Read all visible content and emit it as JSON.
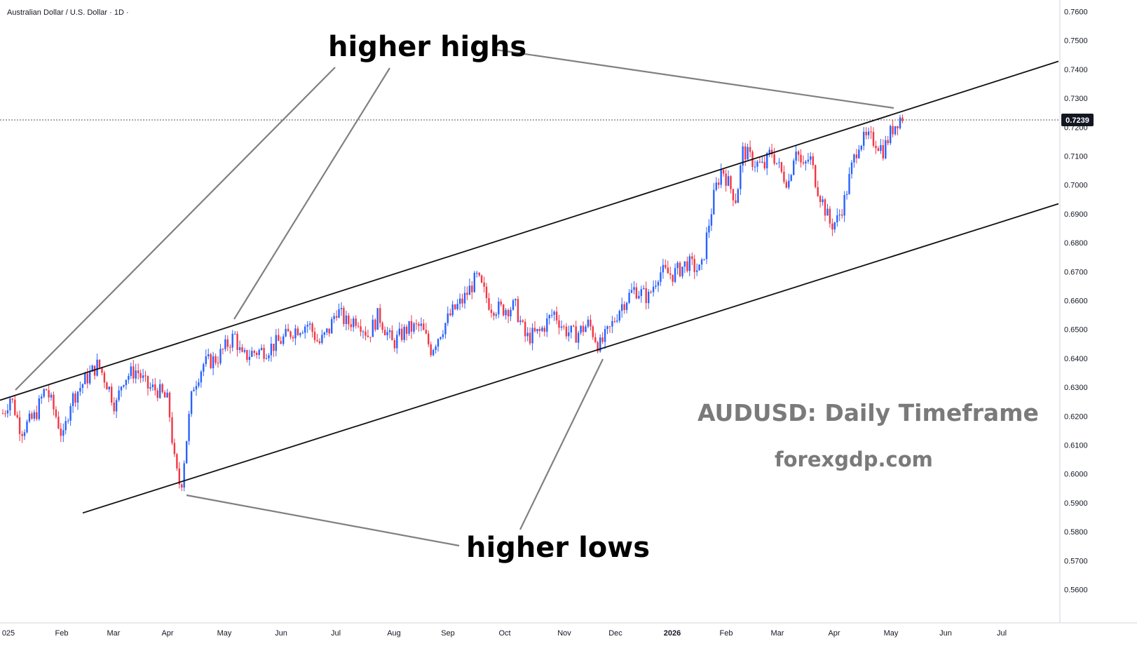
{
  "symbol": {
    "title": "Australian Dollar / U.S. Dollar · 1D ·"
  },
  "annotations": {
    "higher_highs": "higher highs",
    "higher_lows": "higher lows",
    "watermark_title": "AUDUSD: Daily Timeframe",
    "watermark_site": "forexgdp.com"
  },
  "colors": {
    "up_candle": "#2962ff",
    "down_candle": "#f23645",
    "trendline": "#111111",
    "pointer_line": "#808080",
    "price_tag": "#131722"
  },
  "chart_data": {
    "type": "candlestick",
    "price_axis": {
      "ticks": [
        "0.7600",
        "0.7500",
        "0.7400",
        "0.7300",
        "0.7200",
        "0.7100",
        "0.7000",
        "0.6900",
        "0.6800",
        "0.6700",
        "0.6600",
        "0.6500",
        "0.6400",
        "0.6300",
        "0.6200",
        "0.6100",
        "0.6000",
        "0.5900",
        "0.5800",
        "0.5700",
        "0.5600"
      ],
      "range": [
        0.556,
        0.7635
      ]
    },
    "time_axis": {
      "labels": [
        "025",
        "Feb",
        "Mar",
        "Apr",
        "May",
        "Jun",
        "Jul",
        "Aug",
        "Sep",
        "Oct",
        "Nov",
        "Dec",
        "2026",
        "Feb",
        "Mar",
        "Apr",
        "May",
        "Jun",
        "Jul"
      ],
      "bold_labels": [
        "2026"
      ]
    },
    "last_price": "0.7239",
    "channel": {
      "upper": [
        [
          0,
          0.6255
        ],
        [
          1510,
          0.7428
        ]
      ],
      "lower": [
        [
          118,
          0.5865
        ],
        [
          1510,
          0.6935
        ]
      ]
    },
    "path": [
      [
        5,
        0.621
      ],
      [
        15,
        0.627
      ],
      [
        30,
        0.615
      ],
      [
        50,
        0.62
      ],
      [
        65,
        0.63
      ],
      [
        80,
        0.62
      ],
      [
        90,
        0.612
      ],
      [
        100,
        0.625
      ],
      [
        120,
        0.632
      ],
      [
        140,
        0.638
      ],
      [
        155,
        0.63
      ],
      [
        165,
        0.623
      ],
      [
        175,
        0.633
      ],
      [
        195,
        0.636
      ],
      [
        210,
        0.63
      ],
      [
        225,
        0.629
      ],
      [
        240,
        0.625
      ],
      [
        250,
        0.602
      ],
      [
        258,
        0.595
      ],
      [
        265,
        0.61
      ],
      [
        275,
        0.63
      ],
      [
        290,
        0.638
      ],
      [
        310,
        0.64
      ],
      [
        325,
        0.645
      ],
      [
        335,
        0.648
      ],
      [
        345,
        0.64
      ],
      [
        360,
        0.642
      ],
      [
        380,
        0.643
      ],
      [
        400,
        0.646
      ],
      [
        420,
        0.65
      ],
      [
        440,
        0.652
      ],
      [
        455,
        0.645
      ],
      [
        470,
        0.65
      ],
      [
        480,
        0.657
      ],
      [
        495,
        0.652
      ],
      [
        510,
        0.654
      ],
      [
        525,
        0.648
      ],
      [
        540,
        0.655
      ],
      [
        560,
        0.645
      ],
      [
        580,
        0.65
      ],
      [
        600,
        0.651
      ],
      [
        615,
        0.643
      ],
      [
        630,
        0.65
      ],
      [
        645,
        0.656
      ],
      [
        660,
        0.66
      ],
      [
        680,
        0.668
      ],
      [
        700,
        0.658
      ],
      [
        715,
        0.657
      ],
      [
        735,
        0.658
      ],
      [
        750,
        0.647
      ],
      [
        770,
        0.649
      ],
      [
        790,
        0.656
      ],
      [
        805,
        0.65
      ],
      [
        820,
        0.648
      ],
      [
        840,
        0.652
      ],
      [
        855,
        0.644
      ],
      [
        870,
        0.65
      ],
      [
        885,
        0.658
      ],
      [
        905,
        0.664
      ],
      [
        925,
        0.661
      ],
      [
        940,
        0.67
      ],
      [
        960,
        0.669
      ],
      [
        980,
        0.673
      ],
      [
        1000,
        0.67
      ],
      [
        1010,
        0.685
      ],
      [
        1020,
        0.698
      ],
      [
        1030,
        0.706
      ],
      [
        1040,
        0.7
      ],
      [
        1050,
        0.695
      ],
      [
        1060,
        0.712
      ],
      [
        1075,
        0.708
      ],
      [
        1090,
        0.706
      ],
      [
        1100,
        0.712
      ],
      [
        1115,
        0.704
      ],
      [
        1125,
        0.701
      ],
      [
        1135,
        0.714
      ],
      [
        1145,
        0.705
      ],
      [
        1155,
        0.71
      ],
      [
        1165,
        0.7
      ],
      [
        1175,
        0.693
      ],
      [
        1185,
        0.686
      ],
      [
        1195,
        0.688
      ],
      [
        1205,
        0.695
      ],
      [
        1215,
        0.706
      ],
      [
        1225,
        0.715
      ],
      [
        1240,
        0.716
      ],
      [
        1250,
        0.715
      ],
      [
        1260,
        0.712
      ],
      [
        1272,
        0.719
      ],
      [
        1282,
        0.723
      ],
      [
        1290,
        0.7239
      ]
    ]
  }
}
